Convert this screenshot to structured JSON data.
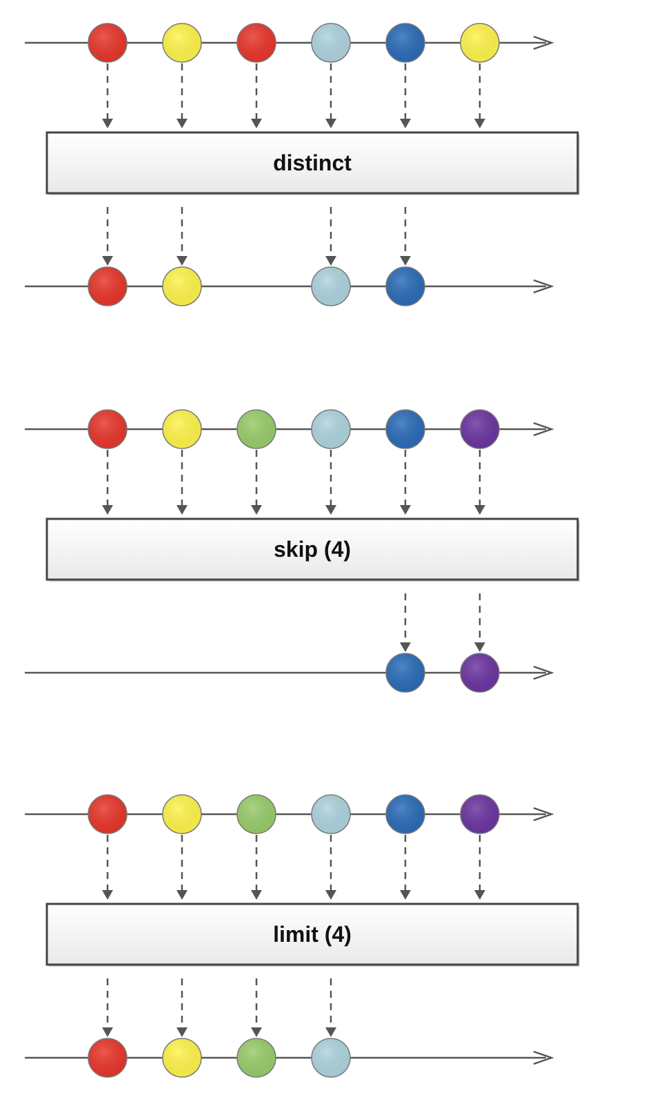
{
  "colors": {
    "red": "#e8352a",
    "yellow": "#fff44a",
    "green": "#98cc6a",
    "lightblue": "#add3df",
    "blue": "#2a6bb8",
    "purple": "#6b34a0",
    "line": "#555555",
    "box_fill_top": "#ffffff",
    "box_fill_bottom": "#ececec",
    "box_border": "#444444"
  },
  "operators": [
    {
      "name": "distinct",
      "label": "distinct",
      "input": [
        "red",
        "yellow",
        "red",
        "lightblue",
        "blue",
        "yellow"
      ],
      "output": [
        0,
        1,
        3,
        4
      ]
    },
    {
      "name": "skip",
      "label": "skip (4)",
      "input": [
        "red",
        "yellow",
        "green",
        "lightblue",
        "blue",
        "purple"
      ],
      "output": [
        4,
        5
      ]
    },
    {
      "name": "limit",
      "label": "limit (4)",
      "input": [
        "red",
        "yellow",
        "green",
        "lightblue",
        "blue",
        "purple"
      ],
      "output": [
        0,
        1,
        2,
        3
      ]
    }
  ]
}
